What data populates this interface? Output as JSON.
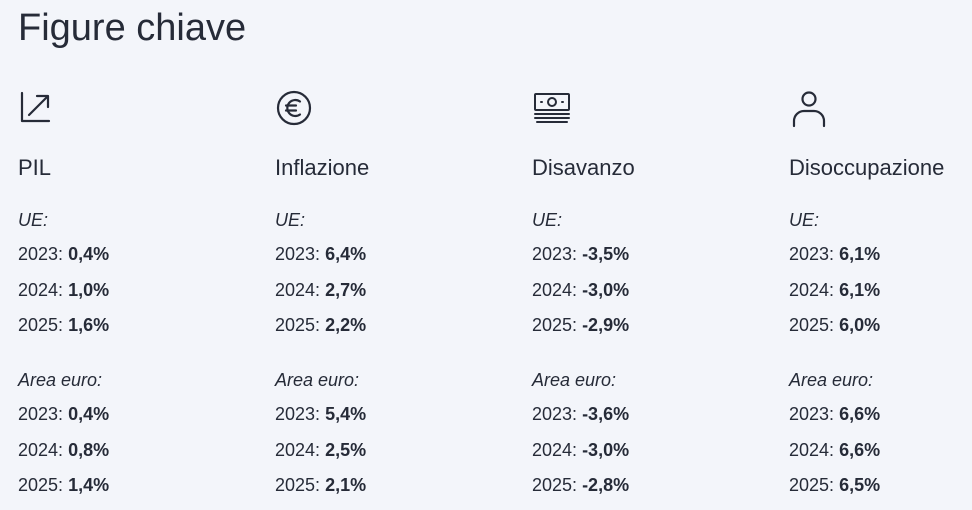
{
  "page": {
    "title": "Figure chiave"
  },
  "columns": [
    {
      "icon": "growth-arrow-icon",
      "title": "PIL",
      "groups": [
        {
          "label": "UE:",
          "rows": [
            {
              "year": "2023:",
              "value": "0,4%"
            },
            {
              "year": "2024:",
              "value": "1,0%"
            },
            {
              "year": "2025:",
              "value": "1,6%"
            }
          ]
        },
        {
          "label": "Area euro:",
          "rows": [
            {
              "year": "2023:",
              "value": "0,4%"
            },
            {
              "year": "2024:",
              "value": "0,8%"
            },
            {
              "year": "2025:",
              "value": "1,4%"
            }
          ]
        }
      ]
    },
    {
      "icon": "euro-coin-icon",
      "title": "Inflazione",
      "groups": [
        {
          "label": "UE:",
          "rows": [
            {
              "year": "2023:",
              "value": "6,4%"
            },
            {
              "year": "2024:",
              "value": "2,7%"
            },
            {
              "year": "2025:",
              "value": "2,2%"
            }
          ]
        },
        {
          "label": "Area euro:",
          "rows": [
            {
              "year": "2023:",
              "value": "5,4%"
            },
            {
              "year": "2024:",
              "value": "2,5%"
            },
            {
              "year": "2025:",
              "value": "2,1%"
            }
          ]
        }
      ]
    },
    {
      "icon": "banknote-stack-icon",
      "title": "Disavanzo",
      "groups": [
        {
          "label": "UE:",
          "rows": [
            {
              "year": "2023:",
              "value": "-3,5%"
            },
            {
              "year": "2024:",
              "value": "-3,0%"
            },
            {
              "year": "2025:",
              "value": "-2,9%"
            }
          ]
        },
        {
          "label": "Area euro:",
          "rows": [
            {
              "year": "2023:",
              "value": "-3,6%"
            },
            {
              "year": "2024:",
              "value": "-3,0%"
            },
            {
              "year": "2025:",
              "value": "-2,8%"
            }
          ]
        }
      ]
    },
    {
      "icon": "person-icon",
      "title": "Disoccupazione",
      "groups": [
        {
          "label": "UE:",
          "rows": [
            {
              "year": "2023:",
              "value": "6,1%"
            },
            {
              "year": "2024:",
              "value": "6,1%"
            },
            {
              "year": "2025:",
              "value": "6,0%"
            }
          ]
        },
        {
          "label": "Area euro:",
          "rows": [
            {
              "year": "2023:",
              "value": "6,6%"
            },
            {
              "year": "2024:",
              "value": "6,6%"
            },
            {
              "year": "2025:",
              "value": "6,5%"
            }
          ]
        }
      ]
    }
  ]
}
